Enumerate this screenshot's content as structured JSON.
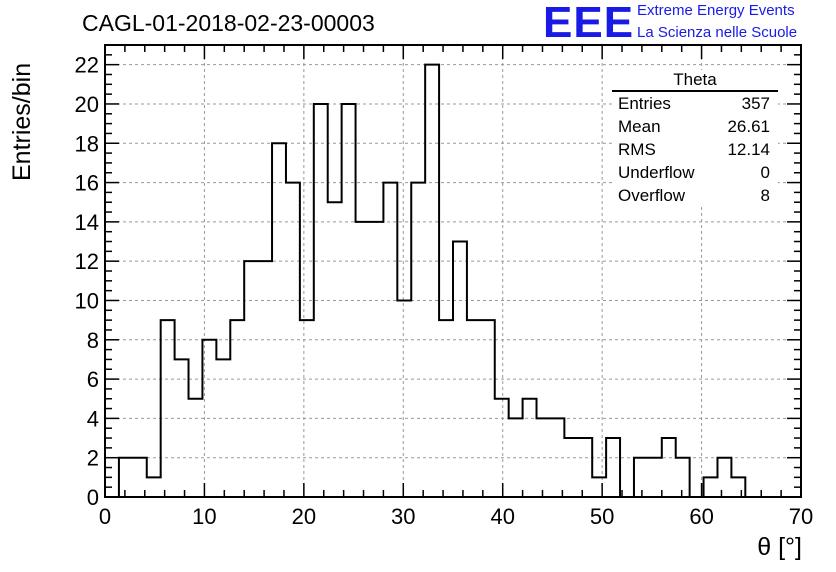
{
  "title": "CAGL-01-2018-02-23-00003",
  "logo": {
    "mark": "EEE",
    "line1": "Extreme Energy Events",
    "line2": "La Scienza nelle Scuole",
    "color": "#1a1ae6"
  },
  "stats": {
    "name": "Theta",
    "rows": [
      {
        "label": "Entries",
        "value": "357"
      },
      {
        "label": "Mean",
        "value": "26.61"
      },
      {
        "label": "RMS",
        "value": "12.14"
      },
      {
        "label": "Underflow",
        "value": "0"
      },
      {
        "label": "Overflow",
        "value": "8"
      }
    ]
  },
  "chart_data": {
    "type": "bar",
    "style": "step-histogram",
    "title": "CAGL-01-2018-02-23-00003",
    "xlabel": "θ [°]",
    "ylabel": "Entries/bin",
    "xlim": [
      0,
      70
    ],
    "ylim": [
      0,
      23
    ],
    "bin_width": 1.4,
    "x_ticks": [
      0,
      10,
      20,
      30,
      40,
      50,
      60,
      70
    ],
    "y_ticks": [
      0,
      2,
      4,
      6,
      8,
      10,
      12,
      14,
      16,
      18,
      20,
      22
    ],
    "grid": true,
    "values": [
      0,
      2,
      2,
      1,
      9,
      7,
      5,
      8,
      7,
      9,
      12,
      12,
      18,
      16,
      9,
      20,
      15,
      20,
      14,
      14,
      16,
      10,
      16,
      22,
      9,
      13,
      9,
      9,
      5,
      4,
      5,
      4,
      4,
      3,
      3,
      1,
      3,
      0,
      2,
      2,
      3,
      2,
      0,
      1,
      2,
      1,
      0,
      0,
      0,
      0
    ]
  }
}
